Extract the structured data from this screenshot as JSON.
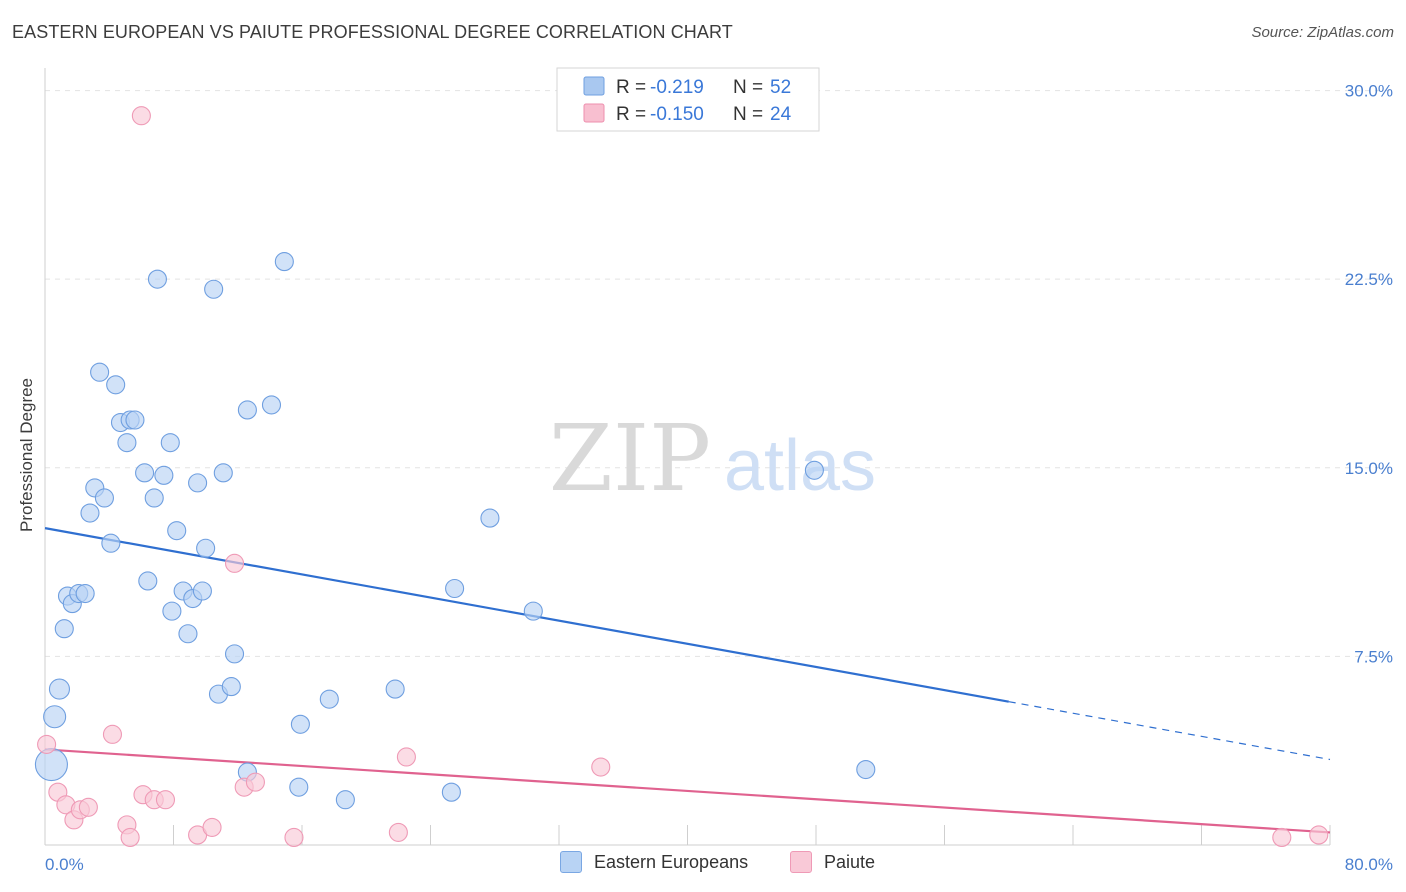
{
  "title": "EASTERN EUROPEAN VS PAIUTE PROFESSIONAL DEGREE CORRELATION CHART",
  "source": "Source: ZipAtlas.com",
  "watermark": {
    "part1": "ZIP",
    "part2": "atlas"
  },
  "legend_top": {
    "rows": [
      {
        "r_label": "R = ",
        "r_value": "-0.219",
        "n_label": "N = ",
        "n_value": "52",
        "color": "#a9c8f0",
        "stroke": "#6f9fe0"
      },
      {
        "r_label": "R = ",
        "r_value": "-0.150",
        "n_label": "N = ",
        "n_value": "24",
        "color": "#f8bfd0",
        "stroke": "#ee8fae"
      }
    ]
  },
  "bottom_legend": {
    "items": [
      {
        "label": "Eastern Europeans",
        "color": "#b8d3f4",
        "stroke": "#7aa7e3"
      },
      {
        "label": "Paiute",
        "color": "#f9c9d7",
        "stroke": "#ef9ab6"
      }
    ]
  },
  "chart_data": {
    "type": "scatter",
    "title": "EASTERN EUROPEAN VS PAIUTE PROFESSIONAL DEGREE CORRELATION CHART",
    "xlabel": "",
    "ylabel": "Professional Degree",
    "xlim": [
      0,
      80
    ],
    "ylim": [
      0,
      30.5
    ],
    "x_ticks": [
      "0.0%",
      "80.0%"
    ],
    "y_ticks": [
      {
        "value": 7.5,
        "label": "7.5%"
      },
      {
        "value": 15.0,
        "label": "15.0%"
      },
      {
        "value": 22.5,
        "label": "22.5%"
      },
      {
        "value": 30.0,
        "label": "30.0%"
      }
    ],
    "grid": true,
    "series": [
      {
        "name": "Eastern Europeans",
        "color": "#6f9fe0",
        "fill": "#b8d3f4",
        "points": [
          [
            0.4,
            3.2,
            16
          ],
          [
            0.6,
            5.1,
            11
          ],
          [
            0.9,
            6.2,
            10
          ],
          [
            1.2,
            8.6,
            9
          ],
          [
            1.4,
            9.9,
            9
          ],
          [
            1.7,
            9.6,
            9
          ],
          [
            2.1,
            10.0,
            9
          ],
          [
            2.5,
            10.0,
            9
          ],
          [
            2.8,
            13.2,
            9
          ],
          [
            3.1,
            14.2,
            9
          ],
          [
            3.4,
            18.8,
            9
          ],
          [
            3.7,
            13.8,
            9
          ],
          [
            4.1,
            12.0,
            9
          ],
          [
            4.4,
            18.3,
            9
          ],
          [
            4.7,
            16.8,
            9
          ],
          [
            5.1,
            16.0,
            9
          ],
          [
            5.3,
            16.9,
            9
          ],
          [
            5.6,
            16.9,
            9
          ],
          [
            6.2,
            14.8,
            9
          ],
          [
            6.4,
            10.5,
            9
          ],
          [
            6.8,
            13.8,
            9
          ],
          [
            7.0,
            22.5,
            9
          ],
          [
            7.4,
            14.7,
            9
          ],
          [
            7.8,
            16.0,
            9
          ],
          [
            7.9,
            9.3,
            9
          ],
          [
            8.2,
            12.5,
            9
          ],
          [
            8.6,
            10.1,
            9
          ],
          [
            8.9,
            8.4,
            9
          ],
          [
            9.2,
            9.8,
            9
          ],
          [
            9.5,
            14.4,
            9
          ],
          [
            9.8,
            10.1,
            9
          ],
          [
            10.0,
            11.8,
            9
          ],
          [
            10.5,
            22.1,
            9
          ],
          [
            10.8,
            6.0,
            9
          ],
          [
            11.1,
            14.8,
            9
          ],
          [
            11.6,
            6.3,
            9
          ],
          [
            11.8,
            7.6,
            9
          ],
          [
            12.6,
            2.9,
            9
          ],
          [
            12.6,
            17.3,
            9
          ],
          [
            14.1,
            17.5,
            9
          ],
          [
            14.9,
            23.2,
            9
          ],
          [
            15.8,
            2.3,
            9
          ],
          [
            15.9,
            4.8,
            9
          ],
          [
            17.7,
            5.8,
            9
          ],
          [
            18.7,
            1.8,
            9
          ],
          [
            21.8,
            6.2,
            9
          ],
          [
            25.3,
            2.1,
            9
          ],
          [
            25.5,
            10.2,
            9
          ],
          [
            27.7,
            13.0,
            9
          ],
          [
            30.4,
            9.3,
            9
          ],
          [
            47.9,
            14.9,
            9
          ],
          [
            51.1,
            3.0,
            9
          ]
        ]
      },
      {
        "name": "Paiute",
        "color": "#ef9ab6",
        "fill": "#f9c9d7",
        "points": [
          [
            0.1,
            4.0,
            9
          ],
          [
            0.8,
            2.1,
            9
          ],
          [
            1.3,
            1.6,
            9
          ],
          [
            1.8,
            1.0,
            9
          ],
          [
            2.2,
            1.4,
            9
          ],
          [
            2.7,
            1.5,
            9
          ],
          [
            4.2,
            4.4,
            9
          ],
          [
            5.1,
            0.8,
            9
          ],
          [
            5.3,
            0.3,
            9
          ],
          [
            6.0,
            29.0,
            9
          ],
          [
            6.1,
            2.0,
            9
          ],
          [
            6.8,
            1.8,
            9
          ],
          [
            7.5,
            1.8,
            9
          ],
          [
            9.5,
            0.4,
            9
          ],
          [
            10.4,
            0.7,
            9
          ],
          [
            11.8,
            11.2,
            9
          ],
          [
            12.4,
            2.3,
            9
          ],
          [
            13.1,
            2.5,
            9
          ],
          [
            15.5,
            0.3,
            9
          ],
          [
            22.0,
            0.5,
            9
          ],
          [
            22.5,
            3.5,
            9
          ],
          [
            34.6,
            3.1,
            9
          ],
          [
            77.0,
            0.3,
            9
          ],
          [
            79.3,
            0.4,
            9
          ]
        ]
      }
    ],
    "trend_lines": [
      {
        "series": "Eastern Europeans",
        "color": "#2f6fd0",
        "x0": 0,
        "y0": 12.6,
        "x1": 60,
        "y1": 5.7,
        "dash_to_x": 80,
        "dash_to_y": 3.4
      },
      {
        "series": "Paiute",
        "color": "#e0628f",
        "x0": 0,
        "y0": 3.8,
        "x1": 80,
        "y1": 0.5
      }
    ]
  }
}
